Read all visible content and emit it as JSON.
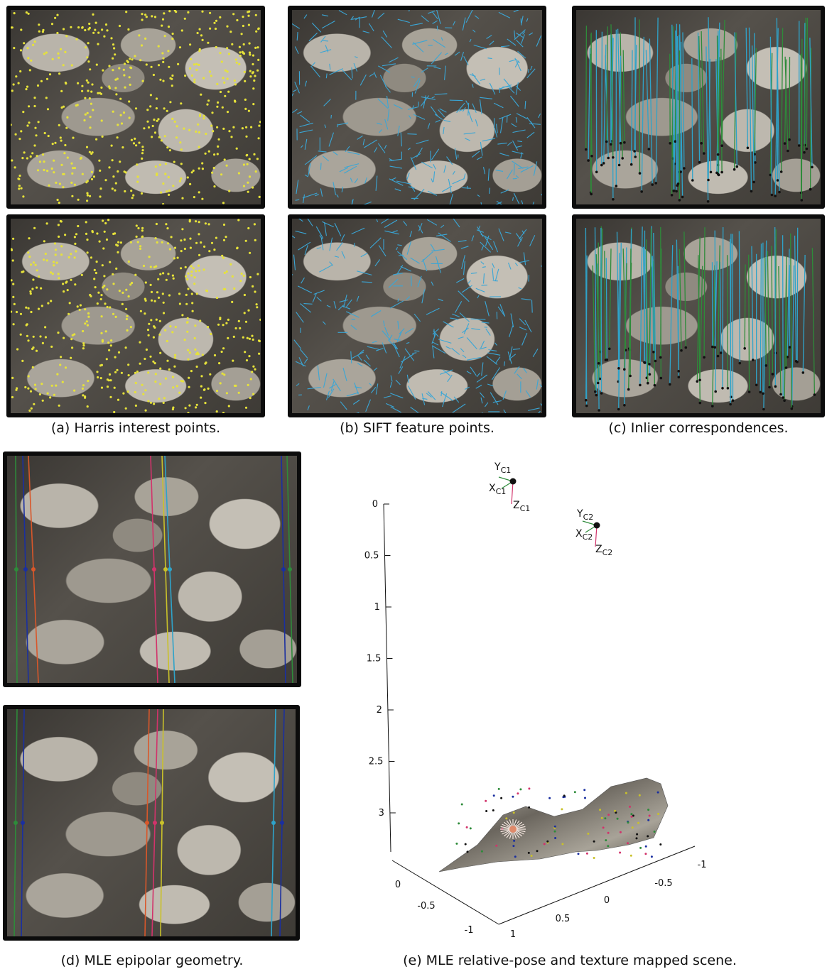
{
  "captions": {
    "a": "(a) Harris interest points.",
    "b": "(b) SIFT feature points.",
    "c": "(c) Inlier correspondences.",
    "d": "(d) MLE epipolar geometry.",
    "e": "(e) MLE relative-pose and texture mapped scene."
  },
  "colors": {
    "harris_points": "#e6e23a",
    "sift_vectors": "#3aa6d6",
    "inlier_blue": "#2fa3c9",
    "inlier_green": "#2e8b3a",
    "epipolar_lines": [
      "#2e8b3a",
      "#1a2fa0",
      "#d9572a",
      "#d2336b",
      "#c9c12a",
      "#2fa3c9",
      "#1a2fa0"
    ]
  },
  "chart_data": {
    "type": "scatter",
    "title": "",
    "axes": {
      "z_ticks": [
        "0",
        "0.5",
        "1",
        "1.5",
        "2",
        "2.5",
        "3"
      ],
      "x_ticks": [
        "0",
        "-0.5",
        "-1"
      ],
      "y_ticks": [
        "1",
        "0.5",
        "0",
        "-0.5",
        "-1"
      ]
    },
    "cameras": [
      {
        "name": "C1",
        "x_label": "X",
        "y_label": "Y",
        "z_label": "Z",
        "sub": "C1"
      },
      {
        "name": "C2",
        "x_label": "X",
        "y_label": "Y",
        "z_label": "Z",
        "sub": "C2"
      }
    ]
  }
}
